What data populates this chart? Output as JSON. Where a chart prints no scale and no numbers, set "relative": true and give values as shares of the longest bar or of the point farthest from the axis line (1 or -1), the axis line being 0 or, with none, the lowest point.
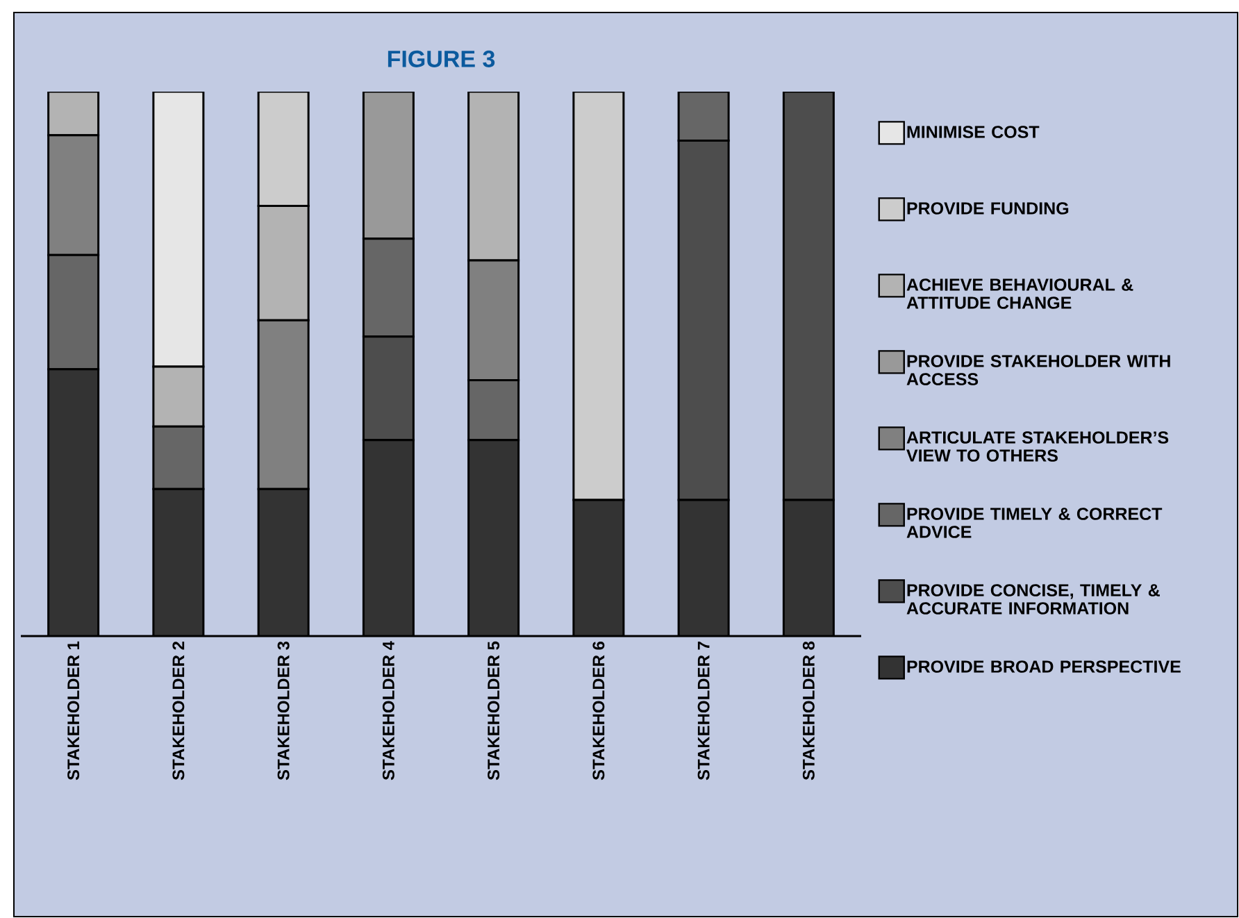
{
  "chart_data": {
    "type": "bar",
    "title": "FIGURE 3",
    "stacked": true,
    "relative": true,
    "legend": "right",
    "categories": [
      "STAKEHOLDER 1",
      "STAKEHOLDER 2",
      "STAKEHOLDER 3",
      "STAKEHOLDER 4",
      "STAKEHOLDER 5",
      "STAKEHOLDER 6",
      "STAKEHOLDER 7",
      "STAKEHOLDER 8"
    ],
    "series": [
      {
        "name": "PROVIDE BROAD PERSPECTIVE",
        "color": "#333333",
        "values": [
          0.49,
          0.27,
          0.27,
          0.36,
          0.36,
          0.25,
          0.25,
          0.25
        ]
      },
      {
        "name": "PROVIDE CONCISE, TIMELY & ACCURATE INFORMATION",
        "color": "#4d4d4d",
        "values": [
          0,
          0,
          0,
          0.19,
          0,
          0,
          0.66,
          0.75
        ]
      },
      {
        "name": "PROVIDE TIMELY & CORRECT ADVICE",
        "color": "#666666",
        "values": [
          0.21,
          0.115,
          0,
          0.18,
          0.11,
          0,
          0.09,
          0
        ]
      },
      {
        "name": "ARTICULATE STAKEHOLDER’S VIEW TO OTHERS",
        "color": "#808080",
        "values": [
          0.22,
          0,
          0.31,
          0,
          0.22,
          0,
          0,
          0
        ]
      },
      {
        "name": "PROVIDE STAKEHOLDER WITH ACCESS",
        "color": "#999999",
        "values": [
          0,
          0,
          0,
          0.27,
          0,
          0,
          0,
          0
        ]
      },
      {
        "name": "ACHIEVE BEHAVIOURAL & ATTITUDE CHANGE",
        "color": "#b3b3b3",
        "values": [
          0.08,
          0.11,
          0.21,
          0,
          0.31,
          0,
          0,
          0
        ]
      },
      {
        "name": "PROVIDE FUNDING",
        "color": "#cccccc",
        "values": [
          0,
          0,
          0.21,
          0,
          0,
          0.75,
          0,
          0
        ]
      },
      {
        "name": "MINIMISE COST",
        "color": "#e6e6e6",
        "values": [
          0,
          0.505,
          0,
          0,
          0,
          0,
          0,
          0
        ]
      }
    ]
  }
}
